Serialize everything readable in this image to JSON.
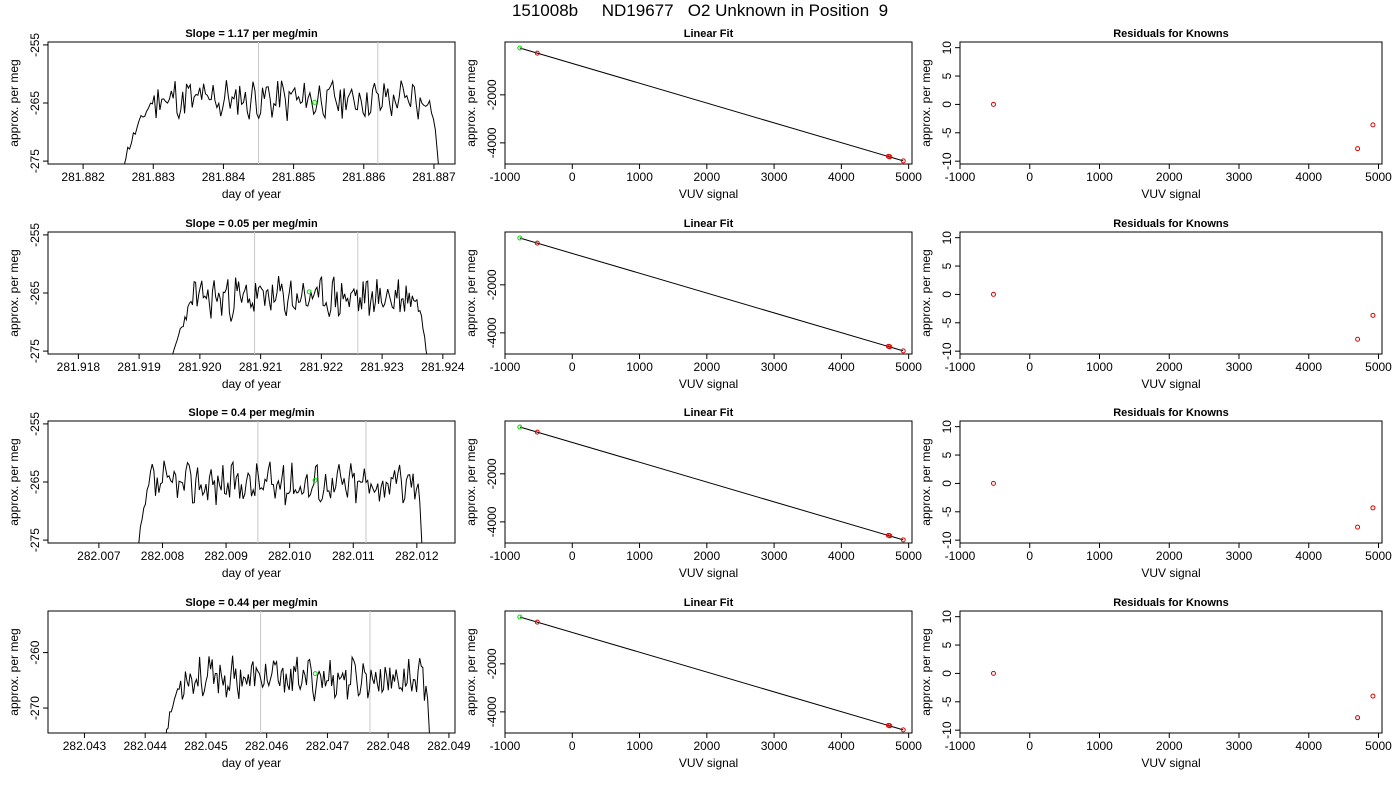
{
  "figure": {
    "title": "151008b     ND19677   O2 Unknown in Position  9"
  },
  "colors": {
    "trace": "#000000",
    "marker_unknown": "#00dd00",
    "marker_known": "#dd0000",
    "vline": "#c8c8c8"
  },
  "chart_data": [
    {
      "type": "line",
      "panel": "timeseries",
      "row": 1,
      "title": "Slope =  1.17  per meg/min",
      "xlabel": "day of year",
      "ylabel": "approx. per meg",
      "xlim": [
        281.8815,
        281.8873
      ],
      "ylim": [
        -275.5,
        -254.5
      ],
      "xticks": [
        281.882,
        281.883,
        281.884,
        281.885,
        281.886,
        281.887
      ],
      "xtick_labels": [
        "281.882",
        "281.883",
        "281.884",
        "281.885",
        "281.886",
        "281.887"
      ],
      "yticks": [
        -255,
        -265,
        -275
      ],
      "ytick_labels": [
        "-255",
        "-265",
        "-275"
      ],
      "start": 281.8825,
      "end": 281.8871,
      "plateau_start": 281.883,
      "plateau_end": 281.8869,
      "level": -264.4,
      "seed": 11,
      "vlines": [
        281.8845,
        281.8862
      ],
      "marker": {
        "x": 281.8853,
        "y": -264.9
      }
    },
    {
      "type": "scatter",
      "panel": "fit",
      "row": 1,
      "title": "Linear Fit",
      "xlabel": "VUV signal",
      "ylabel": "approx. per meg",
      "xlim": [
        -1000,
        5050
      ],
      "ylim": [
        -4880,
        200
      ],
      "xticks": [
        -1000,
        0,
        1000,
        2000,
        3000,
        4000,
        5000
      ],
      "xtick_labels": [
        "-1000",
        "0",
        "1000",
        "2000",
        "3000",
        "4000",
        "5000"
      ],
      "yticks": [
        -2000,
        -4000
      ],
      "ytick_labels": [
        "-2000",
        "-4000"
      ],
      "line": [
        [
          -780,
          -50
        ],
        [
          4920,
          -4750
        ]
      ],
      "knowns": [
        [
          -520,
          -265
        ],
        [
          4700,
          -4560
        ],
        [
          4720,
          -4580
        ],
        [
          4920,
          -4750
        ]
      ],
      "unknown": [
        -780,
        -50
      ]
    },
    {
      "type": "scatter",
      "panel": "residuals",
      "row": 1,
      "title": "Residuals for Knowns",
      "xlabel": "VUV signal",
      "ylabel": "approx. per meg",
      "xlim": [
        -1000,
        5050
      ],
      "ylim": [
        -10.5,
        11
      ],
      "xticks": [
        -1000,
        0,
        1000,
        2000,
        3000,
        4000,
        5000
      ],
      "xtick_labels": [
        "-1000",
        "0",
        "1000",
        "2000",
        "3000",
        "4000",
        "5000"
      ],
      "yticks": [
        10,
        5,
        0,
        -5,
        -10
      ],
      "ytick_labels": [
        "10",
        "5",
        "0",
        "-5",
        "-10"
      ],
      "points": [
        [
          -520,
          0
        ],
        [
          4700,
          -7.8
        ],
        [
          4920,
          -3.6
        ]
      ]
    },
    {
      "type": "line",
      "panel": "timeseries",
      "row": 2,
      "title": "Slope =  0.05  per meg/min",
      "xlabel": "day of year",
      "ylabel": "approx. per meg",
      "xlim": [
        281.9175,
        281.9242
      ],
      "ylim": [
        -275.5,
        -254.5
      ],
      "xticks": [
        281.918,
        281.919,
        281.92,
        281.921,
        281.922,
        281.923,
        281.924
      ],
      "xtick_labels": [
        "281.918",
        "281.919",
        "281.920",
        "281.921",
        "281.922",
        "281.923",
        "281.924"
      ],
      "yticks": [
        -255,
        -265,
        -275
      ],
      "ytick_labels": [
        "-255",
        "-265",
        "-275"
      ],
      "start": 281.9195,
      "end": 281.9238,
      "plateau_start": 281.9199,
      "plateau_end": 281.9235,
      "level": -265.8,
      "seed": 23,
      "vlines": [
        281.9209,
        281.9226
      ],
      "marker": {
        "x": 281.9218,
        "y": -264.8
      }
    },
    {
      "type": "scatter",
      "panel": "fit",
      "row": 2,
      "title": "Linear Fit",
      "xlabel": "VUV signal",
      "ylabel": "approx. per meg",
      "xlim": [
        -1000,
        5050
      ],
      "ylim": [
        -4880,
        200
      ],
      "xticks": [
        -1000,
        0,
        1000,
        2000,
        3000,
        4000,
        5000
      ],
      "xtick_labels": [
        "-1000",
        "0",
        "1000",
        "2000",
        "3000",
        "4000",
        "5000"
      ],
      "yticks": [
        -2000,
        -4000
      ],
      "ytick_labels": [
        "-2000",
        "-4000"
      ],
      "line": [
        [
          -780,
          -50
        ],
        [
          4920,
          -4750
        ]
      ],
      "knowns": [
        [
          -520,
          -265
        ],
        [
          4700,
          -4560
        ],
        [
          4720,
          -4580
        ],
        [
          4920,
          -4750
        ]
      ],
      "unknown": [
        -780,
        -50
      ]
    },
    {
      "type": "scatter",
      "panel": "residuals",
      "row": 2,
      "title": "Residuals for Knowns",
      "xlabel": "VUV signal",
      "ylabel": "approx. per meg",
      "xlim": [
        -1000,
        5050
      ],
      "ylim": [
        -10.5,
        11
      ],
      "xticks": [
        -1000,
        0,
        1000,
        2000,
        3000,
        4000,
        5000
      ],
      "xtick_labels": [
        "-1000",
        "0",
        "1000",
        "2000",
        "3000",
        "4000",
        "5000"
      ],
      "yticks": [
        10,
        5,
        0,
        -5,
        -10
      ],
      "ytick_labels": [
        "10",
        "5",
        "0",
        "-5",
        "-10"
      ],
      "points": [
        [
          -520,
          0
        ],
        [
          4700,
          -7.9
        ],
        [
          4920,
          -3.7
        ]
      ]
    },
    {
      "type": "line",
      "panel": "timeseries",
      "row": 3,
      "title": "Slope =  0.4  per meg/min",
      "xlabel": "day of year",
      "ylabel": "approx. per meg",
      "xlim": [
        282.0062,
        282.0126
      ],
      "ylim": [
        -275.5,
        -254.5
      ],
      "xticks": [
        282.007,
        282.008,
        282.009,
        282.01,
        282.011,
        282.012
      ],
      "xtick_labels": [
        "282.007",
        "282.008",
        "282.009",
        "282.010",
        "282.011",
        "282.012"
      ],
      "yticks": [
        -255,
        -265,
        -275
      ],
      "ytick_labels": [
        "-255",
        "-265",
        "-275"
      ],
      "start": 282.0076,
      "end": 282.0121,
      "plateau_start": 282.0078,
      "plateau_end": 282.012,
      "level": -265.3,
      "seed": 37,
      "vlines": [
        282.0095,
        282.0112
      ],
      "marker": {
        "x": 282.0104,
        "y": -264.7
      }
    },
    {
      "type": "scatter",
      "panel": "fit",
      "row": 3,
      "title": "Linear Fit",
      "xlabel": "VUV signal",
      "ylabel": "approx. per meg",
      "xlim": [
        -1000,
        5050
      ],
      "ylim": [
        -4880,
        200
      ],
      "xticks": [
        -1000,
        0,
        1000,
        2000,
        3000,
        4000,
        5000
      ],
      "xtick_labels": [
        "-1000",
        "0",
        "1000",
        "2000",
        "3000",
        "4000",
        "5000"
      ],
      "yticks": [
        -2000,
        -4000
      ],
      "ytick_labels": [
        "-2000",
        "-4000"
      ],
      "line": [
        [
          -780,
          -50
        ],
        [
          4920,
          -4750
        ]
      ],
      "knowns": [
        [
          -520,
          -265
        ],
        [
          4700,
          -4560
        ],
        [
          4720,
          -4580
        ],
        [
          4920,
          -4750
        ]
      ],
      "unknown": [
        -780,
        -50
      ]
    },
    {
      "type": "scatter",
      "panel": "residuals",
      "row": 3,
      "title": "Residuals for Knowns",
      "xlabel": "VUV signal",
      "ylabel": "approx. per meg",
      "xlim": [
        -1000,
        5050
      ],
      "ylim": [
        -10.5,
        11
      ],
      "xticks": [
        -1000,
        0,
        1000,
        2000,
        3000,
        4000,
        5000
      ],
      "xtick_labels": [
        "-1000",
        "0",
        "1000",
        "2000",
        "3000",
        "4000",
        "5000"
      ],
      "yticks": [
        10,
        5,
        0,
        -5,
        -10
      ],
      "ytick_labels": [
        "10",
        "5",
        "0",
        "-5",
        "-10"
      ],
      "points": [
        [
          -520,
          0
        ],
        [
          4700,
          -7.7
        ],
        [
          4920,
          -4.3
        ]
      ]
    },
    {
      "type": "line",
      "panel": "timeseries",
      "row": 4,
      "title": "Slope =  0.44  per meg/min",
      "xlabel": "day of year",
      "ylabel": "approx. per meg",
      "xlim": [
        282.0424,
        282.0491
      ],
      "ylim": [
        -274.5,
        -252.5
      ],
      "xticks": [
        282.043,
        282.044,
        282.045,
        282.046,
        282.047,
        282.048,
        282.049
      ],
      "xtick_labels": [
        "282.043",
        "282.044",
        "282.045",
        "282.046",
        "282.047",
        "282.048",
        "282.049"
      ],
      "yticks": [
        -260,
        -270
      ],
      "ytick_labels": [
        "-260",
        "-270"
      ],
      "start": 282.0443,
      "end": 282.0487,
      "plateau_start": 282.0446,
      "plateau_end": 282.0486,
      "level": -264.6,
      "seed": 53,
      "vlines": [
        282.0459,
        282.0477
      ],
      "marker": {
        "x": 282.0468,
        "y": -263.8
      }
    },
    {
      "type": "scatter",
      "panel": "fit",
      "row": 4,
      "title": "Linear Fit",
      "xlabel": "VUV signal",
      "ylabel": "approx. per meg",
      "xlim": [
        -1000,
        5050
      ],
      "ylim": [
        -4880,
        200
      ],
      "xticks": [
        -1000,
        0,
        1000,
        2000,
        3000,
        4000,
        5000
      ],
      "xtick_labels": [
        "-1000",
        "0",
        "1000",
        "2000",
        "3000",
        "4000",
        "5000"
      ],
      "yticks": [
        -2000,
        -4000
      ],
      "ytick_labels": [
        "-2000",
        "-4000"
      ],
      "line": [
        [
          -780,
          -50
        ],
        [
          4920,
          -4750
        ]
      ],
      "knowns": [
        [
          -520,
          -265
        ],
        [
          4700,
          -4560
        ],
        [
          4720,
          -4580
        ],
        [
          4920,
          -4750
        ]
      ],
      "unknown": [
        -780,
        -50
      ]
    },
    {
      "type": "scatter",
      "panel": "residuals",
      "row": 4,
      "title": "Residuals for Knowns",
      "xlabel": "VUV signal",
      "ylabel": "approx. per meg",
      "xlim": [
        -1000,
        5050
      ],
      "ylim": [
        -10.5,
        11
      ],
      "xticks": [
        -1000,
        0,
        1000,
        2000,
        3000,
        4000,
        5000
      ],
      "xtick_labels": [
        "-1000",
        "0",
        "1000",
        "2000",
        "3000",
        "4000",
        "5000"
      ],
      "yticks": [
        10,
        5,
        0,
        -5,
        -10
      ],
      "ytick_labels": [
        "10",
        "5",
        "0",
        "-5",
        "-10"
      ],
      "points": [
        [
          -520,
          0
        ],
        [
          4700,
          -7.8
        ],
        [
          4920,
          -4.0
        ]
      ]
    }
  ]
}
